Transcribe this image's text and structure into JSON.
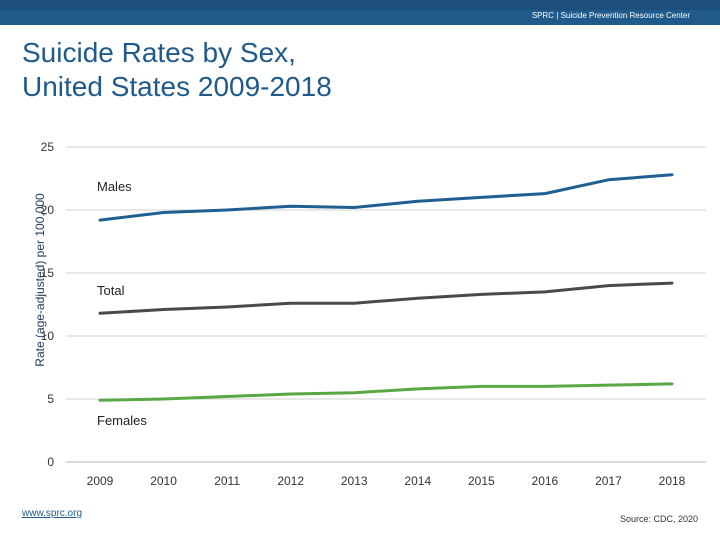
{
  "header": {
    "text": "SPRC  |  Suicide Prevention Resource Center",
    "color": "#1f5a8a",
    "top_color": "#1c4f7c"
  },
  "title_lines": [
    "Suicide Rates by Sex,",
    "United States 2009-2018"
  ],
  "footer": {
    "url": "www.sprc.org",
    "source": "Source: CDC, 2020"
  },
  "chart_data": {
    "type": "line",
    "ylabel": "Rate (age-adjusted) per 100,000",
    "xlabel": "",
    "ylim": [
      0,
      25
    ],
    "yticks": [
      0,
      5,
      10,
      15,
      20,
      25
    ],
    "grid": true,
    "x": [
      "2009",
      "2010",
      "2011",
      "2012",
      "2013",
      "2014",
      "2015",
      "2016",
      "2017",
      "2018"
    ],
    "series": [
      {
        "name": "Males",
        "color": "#1f5f91",
        "values": [
          19.2,
          19.8,
          20.0,
          20.3,
          20.2,
          20.7,
          21.0,
          21.3,
          22.4,
          22.8
        ]
      },
      {
        "name": "Total",
        "color": "#4a4a4a",
        "values": [
          11.8,
          12.1,
          12.3,
          12.6,
          12.6,
          13.0,
          13.3,
          13.5,
          14.0,
          14.2
        ]
      },
      {
        "name": "Females",
        "color": "#5aa845",
        "values": [
          4.9,
          5.0,
          5.2,
          5.4,
          5.5,
          5.8,
          6.0,
          6.0,
          6.1,
          6.2
        ]
      }
    ]
  }
}
